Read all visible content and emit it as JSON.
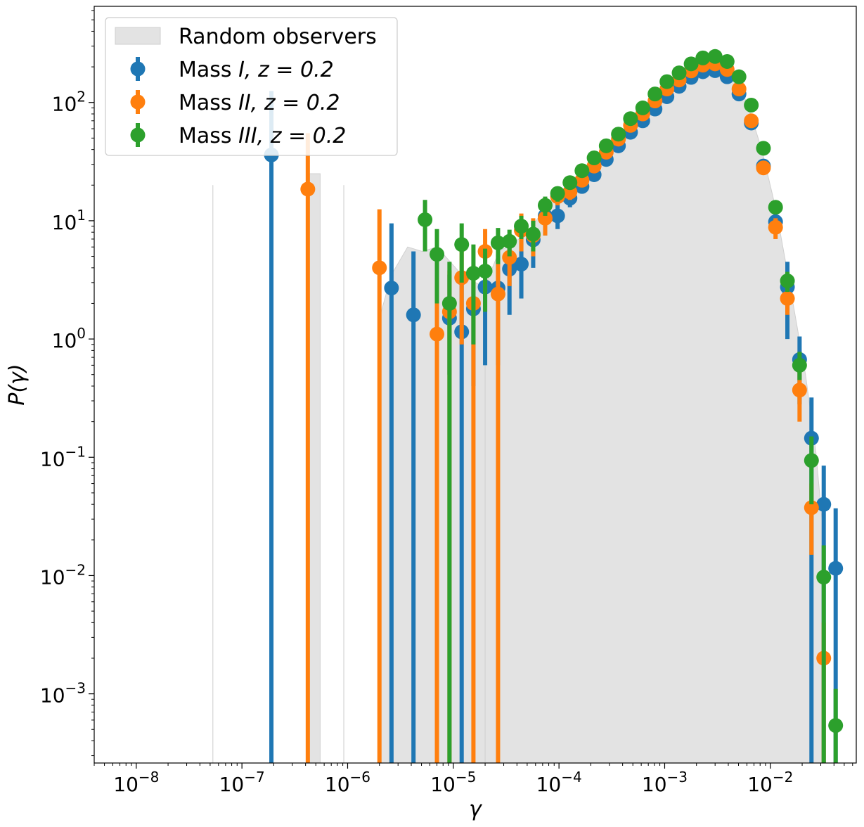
{
  "chart_data": {
    "type": "scatter",
    "title": "",
    "xlabel": "γ",
    "ylabel": "P(γ)",
    "xscale": "log",
    "yscale": "log",
    "xlim": [
      4e-09,
      0.065
    ],
    "ylim": [
      0.00026,
      650
    ],
    "x_ticks": [
      {
        "value": 1e-08,
        "base": "10",
        "exp": "−8"
      },
      {
        "value": 1e-07,
        "base": "10",
        "exp": "−7"
      },
      {
        "value": 1e-06,
        "base": "10",
        "exp": "−6"
      },
      {
        "value": 1e-05,
        "base": "10",
        "exp": "−5"
      },
      {
        "value": 0.0001,
        "base": "10",
        "exp": "−4"
      },
      {
        "value": 0.001,
        "base": "10",
        "exp": "−3"
      },
      {
        "value": 0.01,
        "base": "10",
        "exp": "−2"
      }
    ],
    "y_ticks": [
      {
        "value": 0.001,
        "base": "10",
        "exp": "−3"
      },
      {
        "value": 0.01,
        "base": "10",
        "exp": "−2"
      },
      {
        "value": 0.1,
        "base": "10",
        "exp": "−1"
      },
      {
        "value": 1,
        "base": "10",
        "exp": "0"
      },
      {
        "value": 10,
        "base": "10",
        "exp": "1"
      },
      {
        "value": 100,
        "base": "10",
        "exp": "2"
      }
    ],
    "legend": {
      "placement": "top-left",
      "entries": [
        {
          "label": "Random observers",
          "kind": "band",
          "color": "#d9d9d9"
        },
        {
          "label_prefix": "Mass ",
          "label_math": "I, z = 0.2",
          "kind": "errorbar",
          "color": "#1f77b4"
        },
        {
          "label_prefix": "Mass ",
          "label_math": "II, z = 0.2",
          "kind": "errorbar",
          "color": "#ff7f0e"
        },
        {
          "label_prefix": "Mass ",
          "label_math": "III, z = 0.2",
          "kind": "errorbar",
          "color": "#2ca02c"
        }
      ]
    },
    "band": {
      "name": "Random observers",
      "color": "#d9d9d9",
      "regions": [
        [
          [
            4.2e-07,
            25
          ],
          [
            5.5e-07,
            25
          ],
          [
            5.5e-07,
            0.0001
          ],
          [
            4.2e-07,
            0.0001
          ]
        ],
        [
          [
            2e-06,
            1.5
          ],
          [
            2.6e-06,
            3.5
          ],
          [
            3.7e-06,
            6.0
          ],
          [
            5.1e-06,
            5.5
          ],
          [
            7e-06,
            6.0
          ],
          [
            1.2e-05,
            3.5
          ],
          [
            2e-05,
            2.7
          ],
          [
            2e-05,
            0.0001
          ],
          [
            2e-06,
            0.0001
          ]
        ],
        [
          [
            2e-05,
            0.6
          ],
          [
            2.7e-05,
            1.5
          ],
          [
            3.7e-05,
            1.9
          ],
          [
            5.1e-05,
            2.3
          ],
          [
            7e-05,
            4.0
          ],
          [
            9.6e-05,
            8.0
          ],
          [
            0.000132,
            12.5
          ],
          [
            0.000182,
            16.5
          ],
          [
            0.00025,
            22
          ],
          [
            0.00034,
            28
          ],
          [
            0.00047,
            38
          ],
          [
            0.00065,
            55
          ],
          [
            0.00089,
            75
          ],
          [
            0.00122,
            100
          ],
          [
            0.00168,
            130
          ],
          [
            0.0023,
            150
          ],
          [
            0.0032,
            150
          ],
          [
            0.0044,
            110
          ],
          [
            0.006,
            60
          ],
          [
            0.0083,
            22
          ],
          [
            0.0114,
            5.5
          ],
          [
            0.012,
            3.0
          ],
          [
            0.0125,
            1.5
          ],
          [
            0.0128,
            0.9
          ],
          [
            0.013,
            0.0001
          ],
          [
            0.013,
            0.0001
          ],
          [
            0.0225,
            0.0001
          ],
          [
            0.0225,
            0.035
          ],
          [
            0.031,
            0.005
          ],
          [
            0.031,
            0.0001
          ],
          [
            0.02,
            0.0001
          ],
          [
            0.013,
            0.0001
          ],
          [
            0.013,
            0.0001
          ],
          [
            2e-05,
            0.0001
          ]
        ],
        [
          [
            2e-05,
            2.8
          ],
          [
            2.7e-05,
            5.5
          ],
          [
            3.7e-05,
            6.5
          ],
          [
            5.1e-05,
            8.0
          ],
          [
            7e-05,
            12
          ],
          [
            9.6e-05,
            17
          ],
          [
            0.000132,
            21
          ],
          [
            0.000182,
            27
          ],
          [
            0.00025,
            36
          ],
          [
            0.00034,
            47
          ],
          [
            0.00047,
            63
          ],
          [
            0.00065,
            88
          ],
          [
            0.00089,
            120
          ],
          [
            0.00122,
            160
          ],
          [
            0.00168,
            200
          ],
          [
            0.0023,
            225
          ],
          [
            0.0032,
            225
          ],
          [
            0.0044,
            170
          ],
          [
            0.006,
            100
          ],
          [
            0.0083,
            40
          ],
          [
            0.0114,
            12
          ],
          [
            0.0157,
            2.5
          ],
          [
            0.0215,
            0.5
          ],
          [
            0.027,
            0.11
          ],
          [
            0.033,
            0.015
          ],
          [
            0.033,
            0.0001
          ],
          [
            2e-05,
            0.0001
          ]
        ]
      ],
      "vlines": [
        5.3e-08,
        9.2e-07
      ]
    },
    "series": [
      {
        "name": "Mass I, z = 0.2",
        "color": "#1f77b4",
        "points": [
          {
            "x": 1.9e-07,
            "y": 36,
            "lo": 0.0001,
            "hi": 125
          },
          {
            "x": 2.6e-06,
            "y": 2.7,
            "lo": 0.0001,
            "hi": 9.5
          },
          {
            "x": 4.2e-06,
            "y": 1.6,
            "lo": 0.0001,
            "hi": 5.5
          },
          {
            "x": 9.2e-06,
            "y": 1.5,
            "lo": 0.5,
            "hi": 3.5
          },
          {
            "x": 1.2e-05,
            "y": 1.15,
            "lo": 0.0001,
            "hi": 3.3
          },
          {
            "x": 1.55e-05,
            "y": 1.8,
            "lo": 0.4,
            "hi": 3.8
          },
          {
            "x": 2e-05,
            "y": 2.75,
            "lo": 0.6,
            "hi": 5.5
          },
          {
            "x": 2.65e-05,
            "y": 2.7,
            "lo": 0.6,
            "hi": 5.2
          },
          {
            "x": 3.4e-05,
            "y": 3.9,
            "lo": 1.6,
            "hi": 6.5
          },
          {
            "x": 4.4e-05,
            "y": 4.3,
            "lo": 2.2,
            "hi": 7.0
          },
          {
            "x": 5.7e-05,
            "y": 6.9,
            "lo": 4.0,
            "hi": 10
          },
          {
            "x": 7.4e-05,
            "y": 11,
            "lo": 7.5,
            "hi": 14.5
          },
          {
            "x": 9.7e-05,
            "y": 11,
            "lo": 8.5,
            "hi": 14
          },
          {
            "x": 0.000127,
            "y": 15.5,
            "lo": 13,
            "hi": 18.5
          },
          {
            "x": 0.000165,
            "y": 19.5,
            "lo": 17,
            "hi": 22
          },
          {
            "x": 0.000215,
            "y": 24.5,
            "lo": 22,
            "hi": 27
          },
          {
            "x": 0.00028,
            "y": 33,
            "lo": 30,
            "hi": 36
          },
          {
            "x": 0.000365,
            "y": 43,
            "lo": 40,
            "hi": 46
          },
          {
            "x": 0.000475,
            "y": 56,
            "lo": 53,
            "hi": 59
          },
          {
            "x": 0.00062,
            "y": 70,
            "lo": 67,
            "hi": 73
          },
          {
            "x": 0.00081,
            "y": 88,
            "lo": 85,
            "hi": 91
          },
          {
            "x": 0.00105,
            "y": 112,
            "lo": 109,
            "hi": 115
          },
          {
            "x": 0.00137,
            "y": 137,
            "lo": 134,
            "hi": 140
          },
          {
            "x": 0.00178,
            "y": 163,
            "lo": 160,
            "hi": 166
          },
          {
            "x": 0.0023,
            "y": 182,
            "lo": 179,
            "hi": 185
          },
          {
            "x": 0.003,
            "y": 186,
            "lo": 183,
            "hi": 189
          },
          {
            "x": 0.0039,
            "y": 165,
            "lo": 162,
            "hi": 168
          },
          {
            "x": 0.00505,
            "y": 118,
            "lo": 115,
            "hi": 121
          },
          {
            "x": 0.0066,
            "y": 67,
            "lo": 64,
            "hi": 70
          },
          {
            "x": 0.0086,
            "y": 29,
            "lo": 26.5,
            "hi": 31.5
          },
          {
            "x": 0.0112,
            "y": 9.8,
            "lo": 8.2,
            "hi": 11.5
          },
          {
            "x": 0.0145,
            "y": 2.75,
            "lo": 1.0,
            "hi": 4.5
          },
          {
            "x": 0.0189,
            "y": 0.67,
            "lo": 0.28,
            "hi": 1.05
          },
          {
            "x": 0.0245,
            "y": 0.145,
            "lo": 0.0001,
            "hi": 0.32
          },
          {
            "x": 0.032,
            "y": 0.04,
            "lo": 0.0001,
            "hi": 0.085
          },
          {
            "x": 0.0415,
            "y": 0.0115,
            "lo": 0.0001,
            "hi": 0.037
          }
        ]
      },
      {
        "name": "Mass II, z = 0.2",
        "color": "#ff7f0e",
        "points": [
          {
            "x": 4.2e-07,
            "y": 18.5,
            "lo": 0.0001,
            "hi": 55
          },
          {
            "x": 2e-06,
            "y": 4.0,
            "lo": 0.0001,
            "hi": 12.5
          },
          {
            "x": 7e-06,
            "y": 1.1,
            "lo": 0.0001,
            "hi": 3.3
          },
          {
            "x": 9.2e-06,
            "y": 1.7,
            "lo": 0.0001,
            "hi": 3.8
          },
          {
            "x": 1.2e-05,
            "y": 3.3,
            "lo": 0.9,
            "hi": 5.7
          },
          {
            "x": 1.55e-05,
            "y": 2.0,
            "lo": 0.0001,
            "hi": 4.2
          },
          {
            "x": 2e-05,
            "y": 5.5,
            "lo": 2.5,
            "hi": 8.5
          },
          {
            "x": 2.65e-05,
            "y": 2.4,
            "lo": 0.0001,
            "hi": 4.5
          },
          {
            "x": 3.4e-05,
            "y": 4.9,
            "lo": 2.8,
            "hi": 7.2
          },
          {
            "x": 4.4e-05,
            "y": 8.3,
            "lo": 5.5,
            "hi": 11.5
          },
          {
            "x": 5.7e-05,
            "y": 7.5,
            "lo": 5.0,
            "hi": 10.5
          },
          {
            "x": 7.4e-05,
            "y": 10.5,
            "lo": 7.5,
            "hi": 13.5
          },
          {
            "x": 9.7e-05,
            "y": 16,
            "lo": 13.5,
            "hi": 18.5
          },
          {
            "x": 0.000127,
            "y": 17.5,
            "lo": 15,
            "hi": 20
          },
          {
            "x": 0.000165,
            "y": 22,
            "lo": 19.5,
            "hi": 24.5
          },
          {
            "x": 0.000215,
            "y": 29,
            "lo": 26,
            "hi": 32
          },
          {
            "x": 0.00028,
            "y": 38,
            "lo": 35,
            "hi": 41
          },
          {
            "x": 0.000365,
            "y": 49,
            "lo": 46,
            "hi": 52
          },
          {
            "x": 0.000475,
            "y": 64,
            "lo": 61,
            "hi": 67
          },
          {
            "x": 0.00062,
            "y": 80,
            "lo": 77,
            "hi": 83
          },
          {
            "x": 0.00081,
            "y": 103,
            "lo": 100,
            "hi": 106
          },
          {
            "x": 0.00105,
            "y": 130,
            "lo": 127,
            "hi": 133
          },
          {
            "x": 0.00137,
            "y": 155,
            "lo": 152,
            "hi": 158
          },
          {
            "x": 0.00178,
            "y": 185,
            "lo": 182,
            "hi": 188
          },
          {
            "x": 0.0023,
            "y": 207,
            "lo": 204,
            "hi": 210
          },
          {
            "x": 0.003,
            "y": 212,
            "lo": 209,
            "hi": 215
          },
          {
            "x": 0.0039,
            "y": 190,
            "lo": 187,
            "hi": 193
          },
          {
            "x": 0.00505,
            "y": 130,
            "lo": 127,
            "hi": 133
          },
          {
            "x": 0.0066,
            "y": 70,
            "lo": 67,
            "hi": 73
          },
          {
            "x": 0.0086,
            "y": 28,
            "lo": 25.5,
            "hi": 30.5
          },
          {
            "x": 0.0112,
            "y": 8.8,
            "lo": 7.0,
            "hi": 10.5
          },
          {
            "x": 0.0145,
            "y": 2.2,
            "lo": 1.6,
            "hi": 2.8
          },
          {
            "x": 0.0189,
            "y": 0.37,
            "lo": 0.2,
            "hi": 0.55
          },
          {
            "x": 0.0245,
            "y": 0.0375,
            "lo": 0.015,
            "hi": 0.06
          },
          {
            "x": 0.032,
            "y": 0.002,
            "lo": 0.0001,
            "hi": 0.004
          }
        ]
      },
      {
        "name": "Mass III, z = 0.2",
        "color": "#2ca02c",
        "points": [
          {
            "x": 5.4e-06,
            "y": 10.2,
            "lo": 5.5,
            "hi": 15
          },
          {
            "x": 7e-06,
            "y": 5.2,
            "lo": 2.0,
            "hi": 8.5
          },
          {
            "x": 9.2e-06,
            "y": 2.0,
            "lo": 0.0001,
            "hi": 4.5
          },
          {
            "x": 1.2e-05,
            "y": 6.3,
            "lo": 3.0,
            "hi": 9.5
          },
          {
            "x": 1.55e-05,
            "y": 3.6,
            "lo": 0.9,
            "hi": 6.3
          },
          {
            "x": 2e-05,
            "y": 3.75,
            "lo": 1.7,
            "hi": 5.8
          },
          {
            "x": 2.65e-05,
            "y": 6.5,
            "lo": 4.3,
            "hi": 8.7
          },
          {
            "x": 3.4e-05,
            "y": 6.7,
            "lo": 5.0,
            "hi": 8.4
          },
          {
            "x": 4.4e-05,
            "y": 9.0,
            "lo": 7.0,
            "hi": 11
          },
          {
            "x": 5.7e-05,
            "y": 7.7,
            "lo": 5.5,
            "hi": 10
          },
          {
            "x": 7.4e-05,
            "y": 13.5,
            "lo": 11,
            "hi": 16
          },
          {
            "x": 9.7e-05,
            "y": 17,
            "lo": 14.5,
            "hi": 19.5
          },
          {
            "x": 0.000127,
            "y": 21,
            "lo": 18.5,
            "hi": 23.5
          },
          {
            "x": 0.000165,
            "y": 26.5,
            "lo": 24,
            "hi": 29
          },
          {
            "x": 0.000215,
            "y": 34,
            "lo": 31,
            "hi": 37
          },
          {
            "x": 0.00028,
            "y": 43,
            "lo": 40,
            "hi": 46
          },
          {
            "x": 0.000365,
            "y": 54,
            "lo": 51,
            "hi": 57
          },
          {
            "x": 0.000475,
            "y": 73,
            "lo": 70,
            "hi": 76
          },
          {
            "x": 0.00062,
            "y": 90,
            "lo": 87,
            "hi": 93
          },
          {
            "x": 0.00081,
            "y": 118,
            "lo": 115,
            "hi": 121
          },
          {
            "x": 0.00105,
            "y": 150,
            "lo": 147,
            "hi": 153
          },
          {
            "x": 0.00137,
            "y": 178,
            "lo": 175,
            "hi": 181
          },
          {
            "x": 0.00178,
            "y": 212,
            "lo": 209,
            "hi": 215
          },
          {
            "x": 0.0023,
            "y": 238,
            "lo": 235,
            "hi": 241
          },
          {
            "x": 0.003,
            "y": 245,
            "lo": 242,
            "hi": 248
          },
          {
            "x": 0.0039,
            "y": 222,
            "lo": 219,
            "hi": 225
          },
          {
            "x": 0.00505,
            "y": 165,
            "lo": 162,
            "hi": 168
          },
          {
            "x": 0.0066,
            "y": 95,
            "lo": 92,
            "hi": 98
          },
          {
            "x": 0.0086,
            "y": 41,
            "lo": 38,
            "hi": 44
          },
          {
            "x": 0.0112,
            "y": 13,
            "lo": 11.5,
            "hi": 14.5
          },
          {
            "x": 0.0145,
            "y": 3.1,
            "lo": 2.5,
            "hi": 3.7
          },
          {
            "x": 0.0189,
            "y": 0.6,
            "lo": 0.45,
            "hi": 0.78
          },
          {
            "x": 0.0245,
            "y": 0.094,
            "lo": 0.04,
            "hi": 0.15
          },
          {
            "x": 0.032,
            "y": 0.0097,
            "lo": 0.0001,
            "hi": 0.018
          },
          {
            "x": 0.0415,
            "y": 0.00054,
            "lo": 0.0001,
            "hi": 0.0011
          }
        ]
      }
    ]
  }
}
